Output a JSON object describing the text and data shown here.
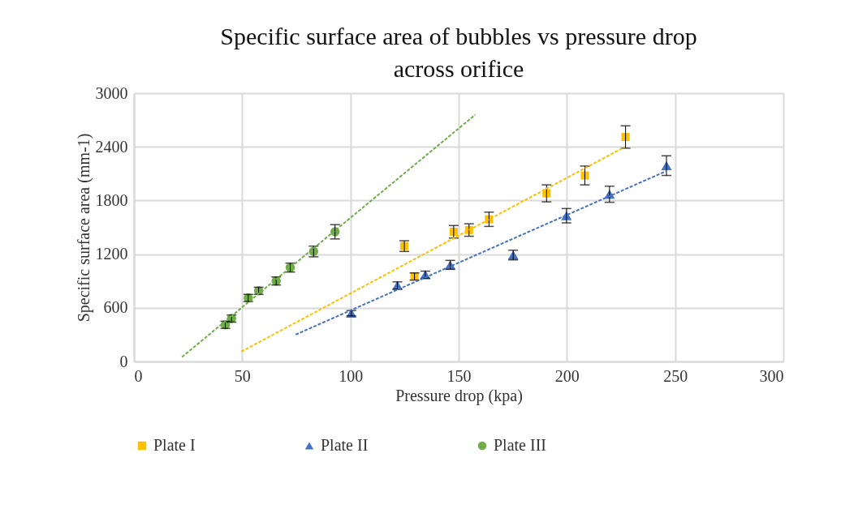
{
  "chart_data": {
    "type": "scatter",
    "title": "Specific surface area of bubbles vs pressure drop across orifice",
    "xlabel": "Pressure drop (kpa)",
    "ylabel": "Specific surface area (mm-1)",
    "xlim": [
      0,
      300
    ],
    "xticks": [
      0,
      50,
      100,
      150,
      200,
      250,
      300
    ],
    "ylim": [
      0,
      3000
    ],
    "yticks": [
      0,
      600,
      1200,
      1800,
      2400,
      3000
    ],
    "grid": true,
    "legend": "bottom",
    "series": [
      {
        "name": "Plate I",
        "color": "#ffc000",
        "marker": "square",
        "x": [
          124.9,
          129.6,
          147.7,
          154.8,
          164.0,
          190.6,
          208.3,
          227.1
        ],
        "values": [
          1290,
          950,
          1450,
          1470,
          1590,
          1880,
          2080,
          2510
        ],
        "errors": [
          60,
          40,
          70,
          70,
          80,
          95,
          105,
          125
        ]
      },
      {
        "name": "Plate II",
        "color": "#4472c4",
        "marker": "triangle",
        "x": [
          100.4,
          121.7,
          134.6,
          146.1,
          175.2,
          199.8,
          219.7,
          246.0
        ],
        "values": [
          540,
          850,
          970,
          1080,
          1190,
          1630,
          1870,
          2190
        ],
        "errors": [
          30,
          40,
          40,
          50,
          54,
          80,
          90,
          110
        ]
      },
      {
        "name": "Plate III",
        "color": "#70ad47",
        "marker": "circle",
        "x": [
          42.2,
          45.1,
          52.8,
          57.6,
          65.7,
          72.2,
          83.0,
          92.9
        ],
        "values": [
          410,
          480,
          710,
          790,
          900,
          1050,
          1230,
          1450
        ],
        "errors": [
          40,
          40,
          40,
          40,
          45,
          50,
          60,
          80
        ]
      },
      {
        "type": "line",
        "color": "#ffc000",
        "line_style": "dashed",
        "marker": "none",
        "x": [
          49.6,
          226.8
        ],
        "values": [
          110,
          2400
        ]
      },
      {
        "type": "line",
        "color": "#4472c4",
        "line_style": "dashed",
        "marker": "none",
        "x": [
          74.7,
          246.0
        ],
        "values": [
          300,
          2130
        ]
      },
      {
        "type": "line",
        "color": "#70ad47",
        "line_style": "dashed",
        "marker": "none",
        "x": [
          22.2,
          157.7
        ],
        "values": [
          50,
          2760
        ]
      }
    ]
  }
}
